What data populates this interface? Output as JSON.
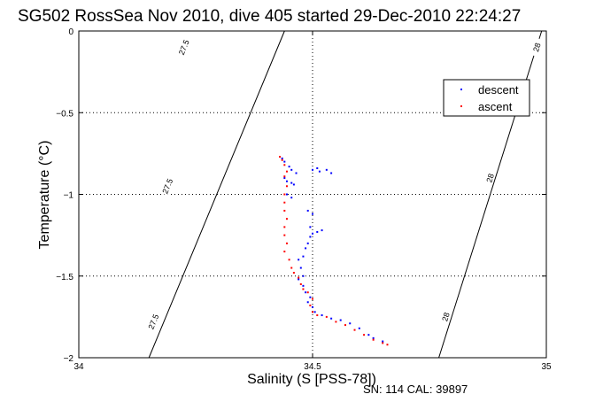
{
  "chart_data": {
    "type": "scatter",
    "title": "SG502 RossSea Nov 2010, dive 405 started 29-Dec-2010 22:24:27",
    "xlabel": "Salinity (S [PSS-78])",
    "ylabel": "Temperature (°C)",
    "xlim": [
      34,
      35
    ],
    "ylim": [
      -2,
      0
    ],
    "xticks": [
      {
        "value": 34,
        "label": "34"
      },
      {
        "value": 34.5,
        "label": "34.5"
      },
      {
        "value": 35,
        "label": "35"
      }
    ],
    "yticks": [
      {
        "value": 0,
        "label": "0"
      },
      {
        "value": -0.5,
        "label": "-0.5"
      },
      {
        "value": -1,
        "label": "-1"
      },
      {
        "value": -1.5,
        "label": "-1.5"
      },
      {
        "value": -2,
        "label": "-2"
      }
    ],
    "grid": true,
    "legend": {
      "placement": "top-right",
      "entries": [
        "descent",
        "ascent"
      ]
    },
    "colors": {
      "descent": "#0000ff",
      "ascent": "#ff0000",
      "axes": "#000000",
      "grid": "#000000"
    },
    "contours": [
      {
        "label": "27.5",
        "line": [
          [
            34.15,
            -2.0
          ],
          [
            34.44,
            0.0
          ]
        ],
        "label_positions": [
          [
            34.225,
            -0.1
          ],
          [
            34.19,
            -0.95
          ],
          [
            34.16,
            -1.78
          ]
        ]
      },
      {
        "label": "28",
        "line": [
          [
            34.77,
            -2.0
          ],
          [
            34.99,
            0.0
          ]
        ],
        "label_positions": [
          [
            34.98,
            -0.1
          ],
          [
            34.88,
            -0.9
          ],
          [
            34.785,
            -1.75
          ]
        ]
      }
    ],
    "series": [
      {
        "name": "descent",
        "points": [
          [
            34.435,
            -0.78
          ],
          [
            34.44,
            -0.8
          ],
          [
            34.45,
            -0.83
          ],
          [
            34.455,
            -0.85
          ],
          [
            34.465,
            -0.87
          ],
          [
            34.5,
            -0.85
          ],
          [
            34.51,
            -0.84
          ],
          [
            34.515,
            -0.86
          ],
          [
            34.53,
            -0.85
          ],
          [
            34.54,
            -0.87
          ],
          [
            34.44,
            -0.9
          ],
          [
            34.445,
            -0.92
          ],
          [
            34.455,
            -0.93
          ],
          [
            34.46,
            -0.94
          ],
          [
            34.445,
            -1.0
          ],
          [
            34.455,
            -1.02
          ],
          [
            34.49,
            -1.1
          ],
          [
            34.5,
            -1.12
          ],
          [
            34.495,
            -1.2
          ],
          [
            34.5,
            -1.24
          ],
          [
            34.51,
            -1.23
          ],
          [
            34.52,
            -1.22
          ],
          [
            34.495,
            -1.26
          ],
          [
            34.49,
            -1.3
          ],
          [
            34.485,
            -1.33
          ],
          [
            34.48,
            -1.38
          ],
          [
            34.47,
            -1.4
          ],
          [
            34.475,
            -1.45
          ],
          [
            34.48,
            -1.5
          ],
          [
            34.47,
            -1.52
          ],
          [
            34.48,
            -1.56
          ],
          [
            34.485,
            -1.6
          ],
          [
            34.495,
            -1.63
          ],
          [
            34.49,
            -1.66
          ],
          [
            34.5,
            -1.69
          ],
          [
            34.505,
            -1.72
          ],
          [
            34.52,
            -1.74
          ],
          [
            34.54,
            -1.76
          ],
          [
            34.56,
            -1.77
          ],
          [
            34.58,
            -1.79
          ],
          [
            34.6,
            -1.82
          ],
          [
            34.62,
            -1.86
          ],
          [
            34.63,
            -1.88
          ],
          [
            34.65,
            -1.9
          ]
        ]
      },
      {
        "name": "ascent",
        "points": [
          [
            34.43,
            -0.77
          ],
          [
            34.435,
            -0.79
          ],
          [
            34.44,
            -0.82
          ],
          [
            34.445,
            -0.86
          ],
          [
            34.44,
            -0.89
          ],
          [
            34.445,
            -0.95
          ],
          [
            34.44,
            -1.0
          ],
          [
            34.44,
            -1.05
          ],
          [
            34.44,
            -1.1
          ],
          [
            34.445,
            -1.15
          ],
          [
            34.44,
            -1.2
          ],
          [
            34.44,
            -1.25
          ],
          [
            34.445,
            -1.3
          ],
          [
            34.44,
            -1.35
          ],
          [
            34.45,
            -1.4
          ],
          [
            34.455,
            -1.45
          ],
          [
            34.46,
            -1.48
          ],
          [
            34.47,
            -1.51
          ],
          [
            34.475,
            -1.55
          ],
          [
            34.48,
            -1.58
          ],
          [
            34.49,
            -1.6
          ],
          [
            34.5,
            -1.64
          ],
          [
            34.495,
            -1.68
          ],
          [
            34.5,
            -1.72
          ],
          [
            34.51,
            -1.74
          ],
          [
            34.53,
            -1.75
          ],
          [
            34.55,
            -1.78
          ],
          [
            34.57,
            -1.8
          ],
          [
            34.59,
            -1.83
          ],
          [
            34.61,
            -1.86
          ],
          [
            34.63,
            -1.89
          ],
          [
            34.65,
            -1.91
          ],
          [
            34.66,
            -1.92
          ]
        ]
      }
    ]
  },
  "footer": {
    "sn_cal": "SN: 114  CAL: 39897"
  }
}
